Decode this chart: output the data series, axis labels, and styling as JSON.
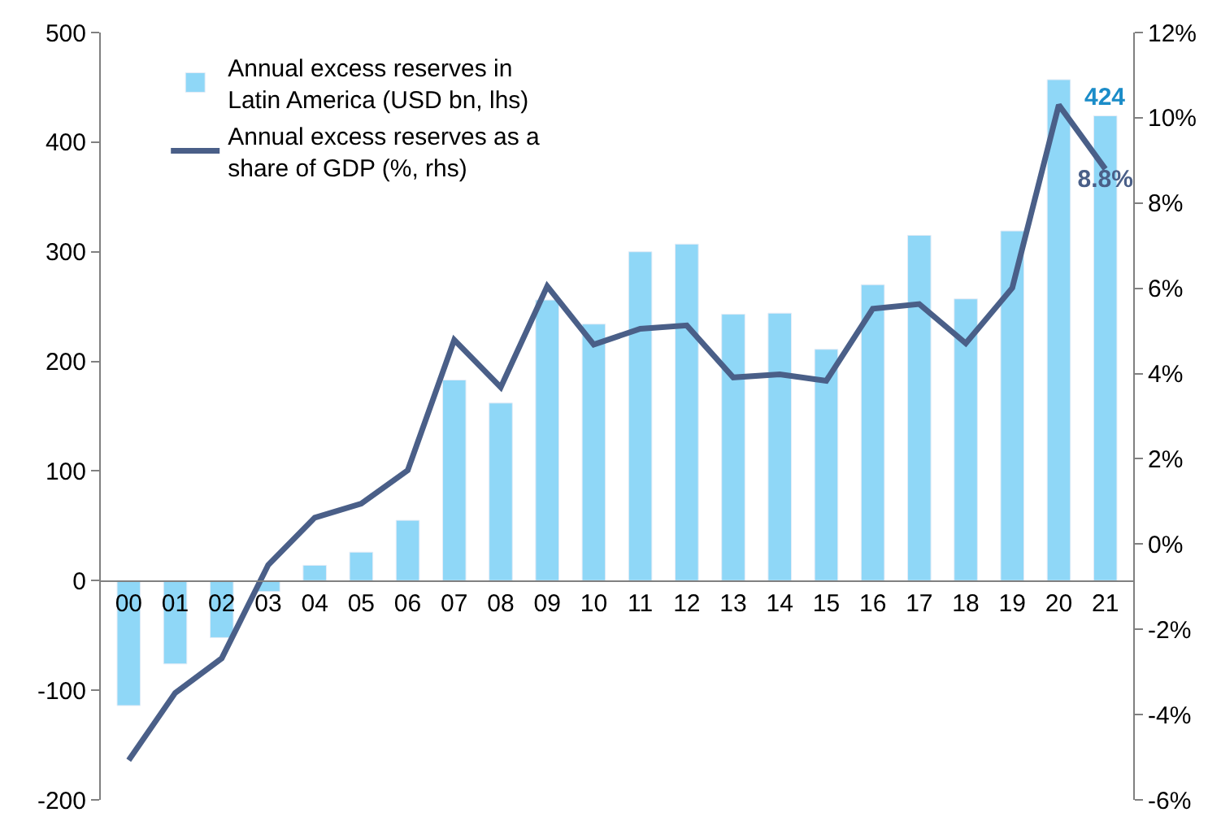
{
  "chart_data": {
    "type": "bar",
    "categories": [
      "00",
      "01",
      "02",
      "03",
      "04",
      "05",
      "06",
      "07",
      "08",
      "09",
      "10",
      "11",
      "12",
      "13",
      "14",
      "15",
      "16",
      "17",
      "18",
      "19",
      "20",
      "21"
    ],
    "series": [
      {
        "name": "Annual excess reserves in Latin America (USD bn, lhs)",
        "color": "#8fd7f7",
        "values": [
          -114,
          -76,
          -52,
          -10,
          14,
          26,
          55,
          183,
          162,
          256,
          234,
          300,
          307,
          243,
          244,
          211,
          270,
          315,
          257,
          319,
          457,
          424
        ],
        "value_labels": [
          null,
          null,
          null,
          null,
          null,
          null,
          null,
          null,
          null,
          null,
          null,
          null,
          null,
          null,
          null,
          null,
          null,
          null,
          null,
          null,
          null,
          "424"
        ]
      },
      {
        "name": "Annual excess reserves as a share of GDP (%, rhs)",
        "type": "line",
        "axis": "y2",
        "color": "#4a5f88",
        "values": [
          -5.07,
          -3.49,
          -2.68,
          -0.49,
          0.62,
          0.95,
          1.73,
          4.79,
          3.68,
          6.05,
          4.68,
          5.05,
          5.13,
          3.91,
          3.98,
          3.83,
          5.52,
          5.63,
          4.71,
          6.01,
          10.3,
          8.8
        ],
        "value_labels": [
          null,
          null,
          null,
          null,
          null,
          null,
          null,
          null,
          null,
          null,
          null,
          null,
          null,
          null,
          null,
          null,
          null,
          null,
          null,
          null,
          null,
          "8.8%"
        ]
      }
    ],
    "ylim": [
      -200,
      500
    ],
    "yticks": [
      -200,
      -100,
      0,
      100,
      200,
      300,
      400,
      500
    ],
    "y2lim": [
      -6,
      12
    ],
    "y2ticks": [
      {
        "value": -6,
        "label": "-6%"
      },
      {
        "value": -4,
        "label": "-4%"
      },
      {
        "value": -2,
        "label": "-2%"
      },
      {
        "value": 0,
        "label": "0%"
      },
      {
        "value": 2,
        "label": "2%"
      },
      {
        "value": 4,
        "label": "4%"
      },
      {
        "value": 6,
        "label": "6%"
      },
      {
        "value": 8,
        "label": "8%"
      },
      {
        "value": 10,
        "label": "10%"
      },
      {
        "value": 12,
        "label": "12%"
      }
    ],
    "legend": "top left",
    "marker": "none",
    "line_style": "solid"
  }
}
